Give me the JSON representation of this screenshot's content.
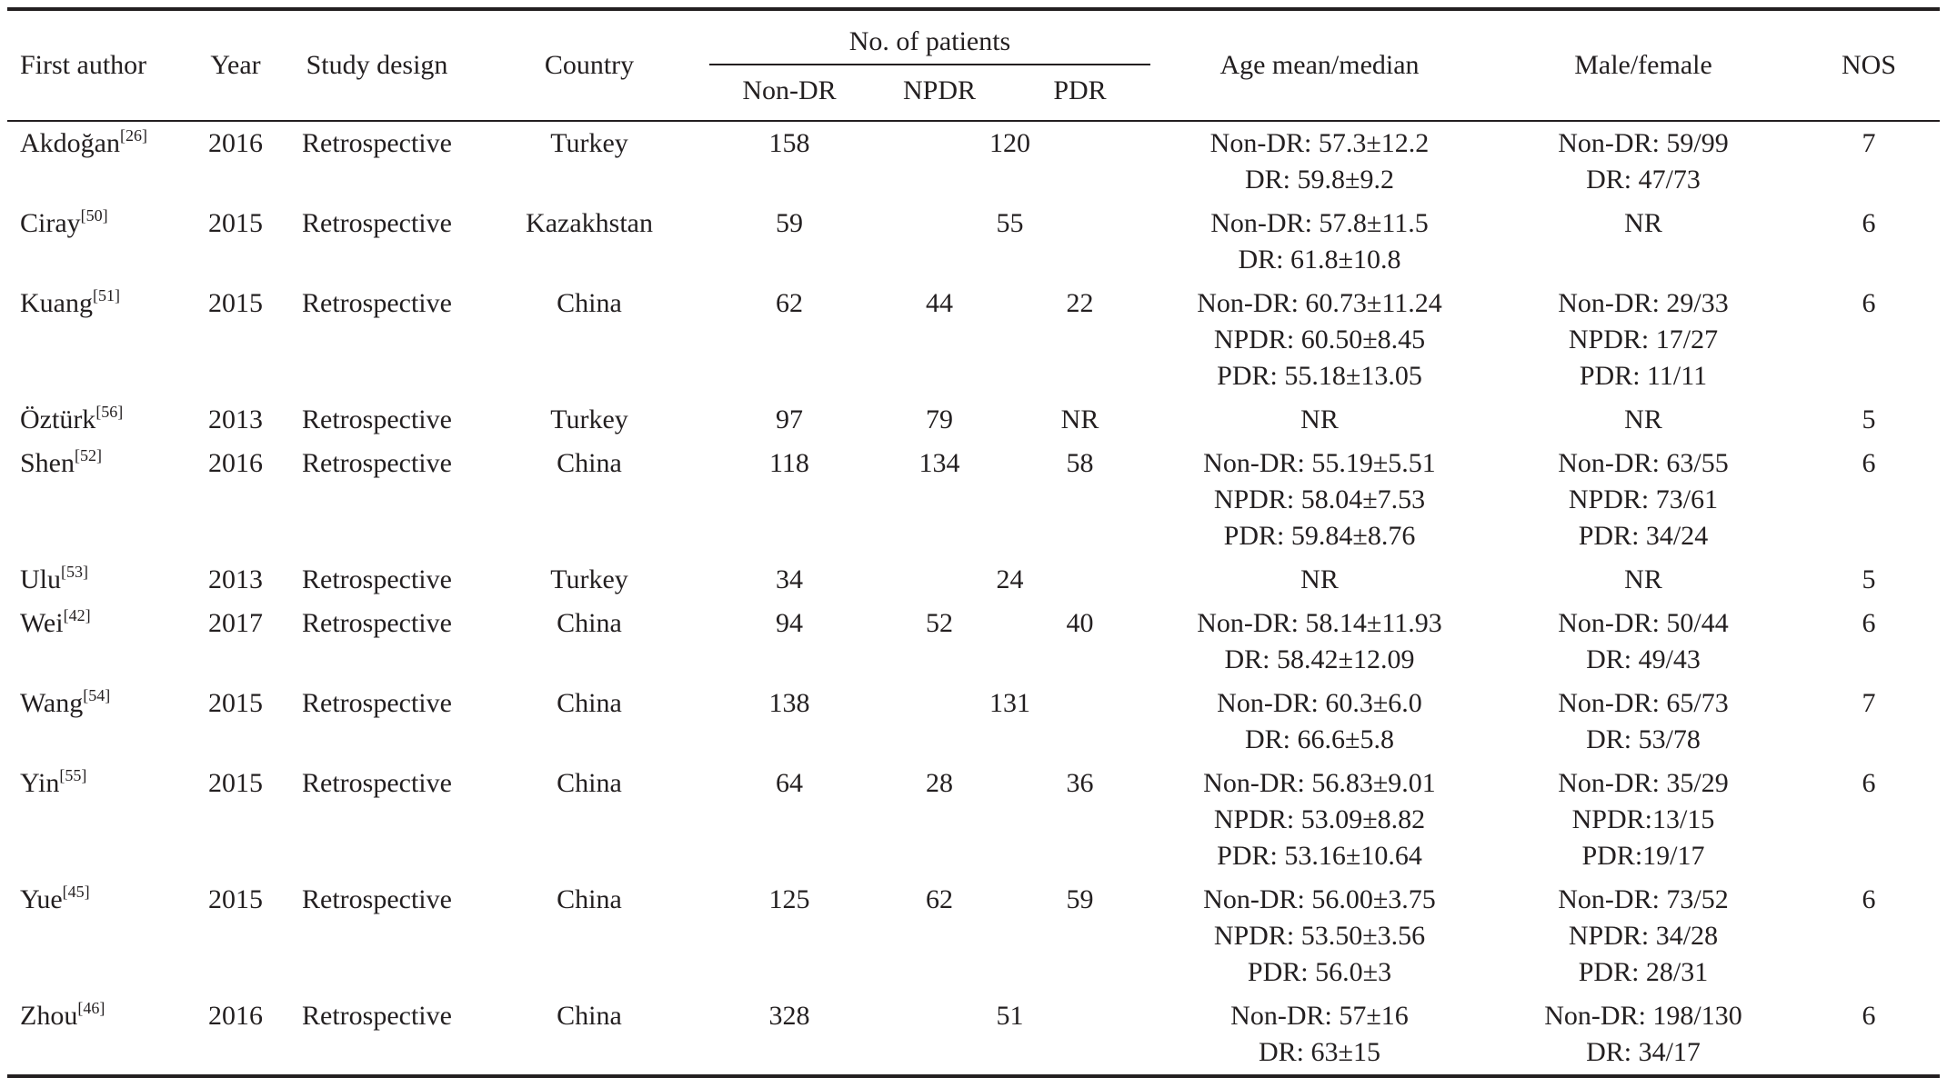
{
  "headers": {
    "first_author": "First author",
    "year": "Year",
    "study_design": "Study design",
    "country": "Country",
    "patients_group": "No. of patients",
    "non_dr": "Non-DR",
    "npdr": "NPDR",
    "pdr": "PDR",
    "age": "Age mean/median",
    "sex": "Male/female",
    "nos": "NOS"
  },
  "rows": [
    {
      "author": "Akdoğan",
      "ref": "[26]",
      "year": "2016",
      "design": "Retrospective",
      "country": "Turkey",
      "non_dr": "158",
      "npdr": "",
      "pdr": "",
      "dr_merged": "120",
      "age": [
        "Non-DR: 57.3±12.2",
        "DR: 59.8±9.2"
      ],
      "sex": [
        "Non-DR: 59/99",
        "DR: 47/73"
      ],
      "nos": "7"
    },
    {
      "author": "Ciray",
      "ref": "[50]",
      "year": "2015",
      "design": "Retrospective",
      "country": "Kazakhstan",
      "non_dr": "59",
      "npdr": "",
      "pdr": "",
      "dr_merged": "55",
      "age": [
        "Non-DR: 57.8±11.5",
        "DR: 61.8±10.8"
      ],
      "sex": [
        "NR"
      ],
      "nos": "6"
    },
    {
      "author": "Kuang",
      "ref": "[51]",
      "year": "2015",
      "design": "Retrospective",
      "country": "China",
      "non_dr": "62",
      "npdr": "44",
      "pdr": "22",
      "dr_merged": "",
      "age": [
        "Non-DR: 60.73±11.24",
        "NPDR: 60.50±8.45",
        "PDR: 55.18±13.05"
      ],
      "sex": [
        "Non-DR: 29/33",
        "NPDR: 17/27",
        "PDR: 11/11"
      ],
      "nos": "6"
    },
    {
      "author": "Öztürk",
      "ref": "[56]",
      "year": "2013",
      "design": "Retrospective",
      "country": "Turkey",
      "non_dr": "97",
      "npdr": "79",
      "pdr": "NR",
      "dr_merged": "",
      "age": [
        "NR"
      ],
      "sex": [
        "NR"
      ],
      "nos": "5"
    },
    {
      "author": "Shen",
      "ref": "[52]",
      "year": "2016",
      "design": "Retrospective",
      "country": "China",
      "non_dr": "118",
      "npdr": "134",
      "pdr": "58",
      "dr_merged": "",
      "age": [
        "Non-DR: 55.19±5.51",
        "NPDR: 58.04±7.53",
        "PDR: 59.84±8.76"
      ],
      "sex": [
        "Non-DR: 63/55",
        "NPDR: 73/61",
        "PDR: 34/24"
      ],
      "nos": "6"
    },
    {
      "author": "Ulu",
      "ref": "[53]",
      "year": "2013",
      "design": "Retrospective",
      "country": "Turkey",
      "non_dr": "34",
      "npdr": "",
      "pdr": "",
      "dr_merged": "24",
      "age": [
        "NR"
      ],
      "sex": [
        "NR"
      ],
      "nos": "5"
    },
    {
      "author": "Wei",
      "ref": "[42]",
      "year": "2017",
      "design": "Retrospective",
      "country": "China",
      "non_dr": "94",
      "npdr": "52",
      "pdr": "40",
      "dr_merged": "",
      "age": [
        "Non-DR: 58.14±11.93",
        "DR: 58.42±12.09"
      ],
      "sex": [
        "Non-DR: 50/44",
        "DR: 49/43"
      ],
      "nos": "6"
    },
    {
      "author": "Wang",
      "ref": "[54]",
      "year": "2015",
      "design": "Retrospective",
      "country": "China",
      "non_dr": "138",
      "npdr": "",
      "pdr": "",
      "dr_merged": "131",
      "age": [
        "Non-DR: 60.3±6.0",
        "DR: 66.6±5.8"
      ],
      "sex": [
        "Non-DR: 65/73",
        "DR: 53/78"
      ],
      "nos": "7"
    },
    {
      "author": "Yin",
      "ref": "[55]",
      "year": "2015",
      "design": "Retrospective",
      "country": "China",
      "non_dr": "64",
      "npdr": "28",
      "pdr": "36",
      "dr_merged": "",
      "age": [
        "Non-DR: 56.83±9.01",
        "NPDR: 53.09±8.82",
        "PDR: 53.16±10.64"
      ],
      "sex": [
        "Non-DR: 35/29",
        "NPDR:13/15",
        "PDR:19/17"
      ],
      "nos": "6"
    },
    {
      "author": "Yue",
      "ref": "[45]",
      "year": "2015",
      "design": "Retrospective",
      "country": "China",
      "non_dr": "125",
      "npdr": "62",
      "pdr": "59",
      "dr_merged": "",
      "age": [
        "Non-DR: 56.00±3.75",
        "NPDR: 53.50±3.56",
        "PDR: 56.0±3"
      ],
      "sex": [
        "Non-DR: 73/52",
        "NPDR: 34/28",
        "PDR: 28/31"
      ],
      "nos": "6"
    },
    {
      "author": "Zhou",
      "ref": "[46]",
      "year": "2016",
      "design": "Retrospective",
      "country": "China",
      "non_dr": "328",
      "npdr": "",
      "pdr": "",
      "dr_merged": "51",
      "age": [
        "Non-DR: 57±16",
        "DR: 63±15"
      ],
      "sex": [
        "Non-DR: 198/130",
        "DR: 34/17"
      ],
      "nos": "6"
    }
  ]
}
